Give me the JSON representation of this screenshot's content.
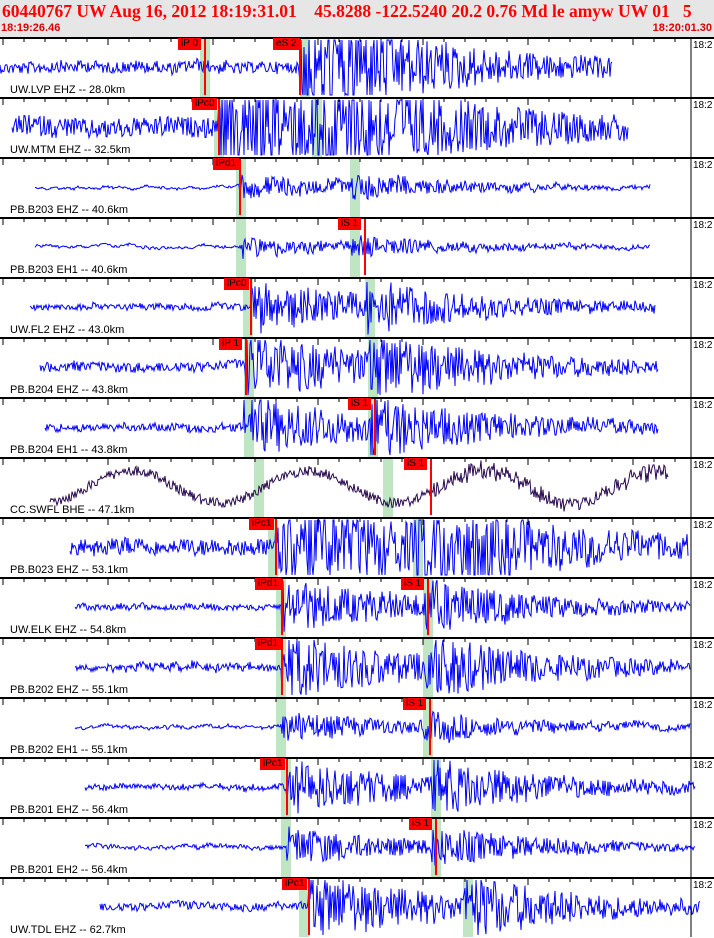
{
  "header": {
    "title": "60440767 UW Aug 16, 2012 18:19:31.01    45.8288 -122.5240 20.2 0.76 Md le amyw UW 01   5",
    "start_time": "18:19:26.46",
    "end_time": "18:20:01.30"
  },
  "colors": {
    "header_bg": "#e6e6e6",
    "title": "#ff0000",
    "waveform": "#0000ff",
    "waveform_broadband": "#2a0a50",
    "pick_flag": "#ff0000",
    "predicted_window": "#bfe5c3"
  },
  "traces": [
    {
      "label": "UW.LVP EHZ -- 28.0km",
      "time_label": "18:2",
      "picks": [
        "iP 0",
        "eS 2"
      ]
    },
    {
      "label": "UW.MTM EHZ -- 32.5km",
      "time_label": "18:2",
      "picks": [
        "iPc0"
      ]
    },
    {
      "label": "PB.B203 EHZ -- 40.6km",
      "time_label": "18:2",
      "picks": [
        "iPd1"
      ]
    },
    {
      "label": "PB.B203 EH1 -- 40.6km",
      "time_label": "18:2",
      "picks": [
        "iS 1"
      ]
    },
    {
      "label": "UW.FL2 EHZ -- 43.0km",
      "time_label": "18:2",
      "picks": [
        "iPc0"
      ]
    },
    {
      "label": "PB.B204 EHZ -- 43.8km",
      "time_label": "18:2",
      "picks": [
        "iP 1"
      ]
    },
    {
      "label": "PB.B204 EH1 -- 43.8km",
      "time_label": "18:2",
      "picks": [
        "iS 1"
      ]
    },
    {
      "label": "CC.SWFL BHE -- 47.1km",
      "time_label": "18:2",
      "picks": [
        "iS 1"
      ]
    },
    {
      "label": "PB.B023 EHZ -- 53.1km",
      "time_label": "18:2",
      "picks": [
        "iPc1"
      ]
    },
    {
      "label": "UW.ELK EHZ -- 54.8km",
      "time_label": "18:2",
      "picks": [
        "iPd1",
        "iS 1"
      ]
    },
    {
      "label": "PB.B202 EHZ -- 55.1km",
      "time_label": "18:2",
      "picks": [
        "iPd1"
      ]
    },
    {
      "label": "PB.B202 EH1 -- 55.1km",
      "time_label": "18:2",
      "picks": [
        "iS 1"
      ]
    },
    {
      "label": "PB.B201 EHZ -- 56.4km",
      "time_label": "18:2",
      "picks": [
        "iPc1"
      ]
    },
    {
      "label": "PB.B201 EH2 -- 56.4km",
      "time_label": "18:2",
      "picks": [
        "iS 1"
      ]
    },
    {
      "label": "UW.TDL EHZ -- 62.7km",
      "time_label": "18:2",
      "picks": [
        "iPc1"
      ]
    }
  ]
}
